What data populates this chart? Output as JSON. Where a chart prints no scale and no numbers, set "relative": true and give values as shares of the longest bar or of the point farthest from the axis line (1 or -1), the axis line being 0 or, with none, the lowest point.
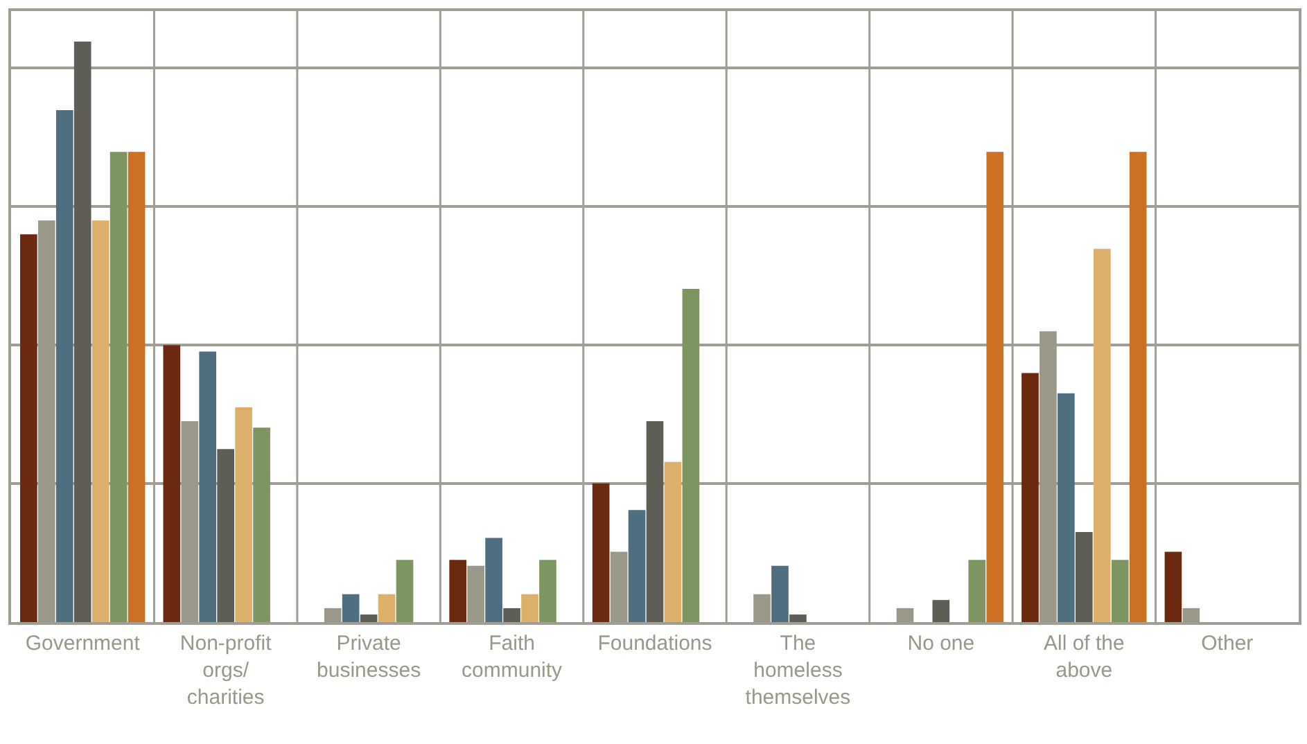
{
  "chart_data": {
    "type": "bar",
    "relative": true,
    "grid": true,
    "categories": [
      "Government",
      "Non-profit orgs/ charities",
      "Private businesses",
      "Faith community",
      "Foundations",
      "The homeless themselves",
      "No one",
      "All of the above",
      "Other"
    ],
    "series": [
      {
        "color": "#6b2a0f",
        "values": [
          0.668,
          0.477,
          0,
          0.107,
          0.239,
          0,
          0,
          0.429,
          0.121
        ]
      },
      {
        "color": "#9a9888",
        "values": [
          0.692,
          0.346,
          0.024,
          0.097,
          0.121,
          0.048,
          0.024,
          0.501,
          0.024
        ]
      },
      {
        "color": "#4f6f80",
        "values": [
          0.882,
          0.466,
          0.048,
          0.145,
          0.193,
          0.097,
          0,
          0.394,
          0
        ]
      },
      {
        "color": "#5e5e56",
        "values": [
          1,
          0.298,
          0.013,
          0.024,
          0.346,
          0.013,
          0.038,
          0.155,
          0
        ]
      },
      {
        "color": "#dcb06a",
        "values": [
          0.692,
          0.37,
          0.048,
          0.048,
          0.276,
          0,
          0,
          0.643,
          0
        ]
      },
      {
        "color": "#7d9560",
        "values": [
          0.81,
          0.335,
          0.107,
          0.107,
          0.574,
          0,
          0.107,
          0.107,
          0
        ]
      },
      {
        "color": "#cc7124",
        "values": [
          0.81,
          0,
          0,
          0,
          0,
          0,
          0.81,
          0.81,
          0
        ]
      }
    ]
  }
}
